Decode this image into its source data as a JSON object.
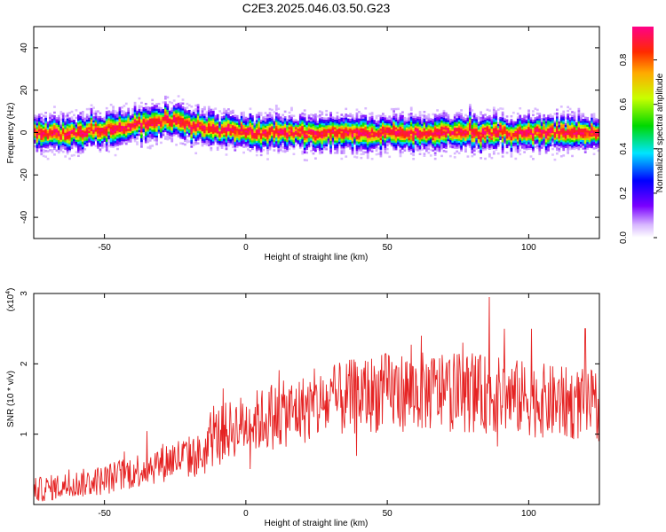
{
  "title": "C2E3.2025.046.03.50.G23",
  "chart_data": [
    {
      "type": "heatmap",
      "xlabel": "Height of straight line (km)",
      "ylabel": "Frequency (Hz)",
      "xlim": [
        -75,
        125
      ],
      "ylim": [
        -50,
        50
      ],
      "x_ticks": [
        -50,
        0,
        50,
        100
      ],
      "y_ticks": [
        -40,
        -20,
        0,
        20,
        40
      ],
      "ridge_x": [
        -75,
        -60,
        -45,
        -35,
        -25,
        -15,
        -5,
        10,
        30,
        50,
        70,
        90,
        110,
        125
      ],
      "ridge_freq": [
        0,
        0,
        2,
        5,
        6,
        2,
        1,
        0,
        0,
        0,
        0,
        0,
        0,
        0
      ],
      "grid": false,
      "colorbar": {
        "label": "Normalized spectral amplitude",
        "range": [
          0,
          0.95
        ],
        "ticks": [
          0.0,
          0.2,
          0.4,
          0.6,
          0.8
        ]
      }
    },
    {
      "type": "line",
      "xlabel": "Height of straight line (km)",
      "ylabel": "SNR (10 * v/v)",
      "y_multiplier": "(x10",
      "y_multiplier_exp": "4",
      "y_multiplier_close": ")",
      "xlim": [
        -75,
        125
      ],
      "ylim": [
        0,
        3
      ],
      "x_ticks": [
        -50,
        0,
        50,
        100
      ],
      "y_ticks": [
        1,
        2,
        3
      ],
      "color": "#e52222",
      "trend_x": [
        -75,
        -50,
        -25,
        -15,
        -10,
        0,
        15,
        25,
        40,
        50,
        60,
        75,
        90,
        100,
        110,
        125
      ],
      "trend_y": [
        0.2,
        0.35,
        0.65,
        0.7,
        1.0,
        1.15,
        1.3,
        1.4,
        1.55,
        1.6,
        1.6,
        1.6,
        1.55,
        1.5,
        1.45,
        1.4
      ],
      "spikes": [
        {
          "x": 86,
          "y": 2.95
        },
        {
          "x": 62,
          "y": 2.4
        },
        {
          "x": 101,
          "y": 2.5
        },
        {
          "x": 120,
          "y": 2.5
        },
        {
          "x": -8,
          "y": 1.65
        },
        {
          "x": 9,
          "y": 1.7
        }
      ]
    }
  ]
}
